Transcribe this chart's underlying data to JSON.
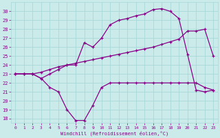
{
  "xlabel": "Windchill (Refroidissement éolien,°C)",
  "background_color": "#cbeaea",
  "grid_color": "#a8d8d8",
  "line_color": "#880088",
  "xlim": [
    -0.5,
    23.5
  ],
  "ylim": [
    17.5,
    31
  ],
  "xticks": [
    0,
    1,
    2,
    3,
    4,
    5,
    6,
    7,
    8,
    9,
    10,
    11,
    12,
    13,
    14,
    15,
    16,
    17,
    18,
    19,
    20,
    21,
    22,
    23
  ],
  "yticks": [
    18,
    19,
    20,
    21,
    22,
    23,
    24,
    25,
    26,
    27,
    28,
    29,
    30
  ],
  "series1_x": [
    0,
    1,
    2,
    3,
    4,
    5,
    6,
    7,
    8,
    9,
    10,
    11,
    12,
    13,
    14,
    15,
    16,
    17,
    18,
    19,
    20,
    21,
    22,
    23
  ],
  "series1_y": [
    23,
    23,
    23,
    22.5,
    21.5,
    21,
    19,
    17.8,
    17.8,
    19.5,
    21.5,
    22,
    22,
    22,
    22,
    22,
    22,
    22,
    22,
    22,
    22,
    22,
    21.5,
    21.2
  ],
  "series2_x": [
    0,
    1,
    2,
    3,
    4,
    5,
    6,
    7,
    8,
    9,
    10,
    11,
    12,
    13,
    14,
    15,
    16,
    17,
    18,
    19,
    20,
    21,
    22,
    23
  ],
  "series2_y": [
    23,
    23,
    23,
    23.2,
    23.5,
    23.8,
    24.0,
    24.2,
    24.4,
    24.6,
    24.8,
    25.0,
    25.2,
    25.4,
    25.6,
    25.8,
    26.0,
    26.3,
    26.6,
    26.9,
    27.8,
    27.8,
    28.0,
    25.0
  ],
  "series3_x": [
    0,
    1,
    2,
    3,
    4,
    5,
    6,
    7,
    8,
    9,
    10,
    11,
    12,
    13,
    14,
    15,
    16,
    17,
    18,
    19,
    20,
    21,
    22,
    23
  ],
  "series3_y": [
    23,
    23,
    23,
    22.5,
    23.0,
    23.5,
    24.0,
    24.0,
    26.5,
    26.0,
    27.0,
    28.5,
    29.0,
    29.2,
    29.5,
    29.7,
    30.2,
    30.3,
    30.0,
    29.2,
    25.2,
    21.2,
    21.0,
    21.2
  ]
}
